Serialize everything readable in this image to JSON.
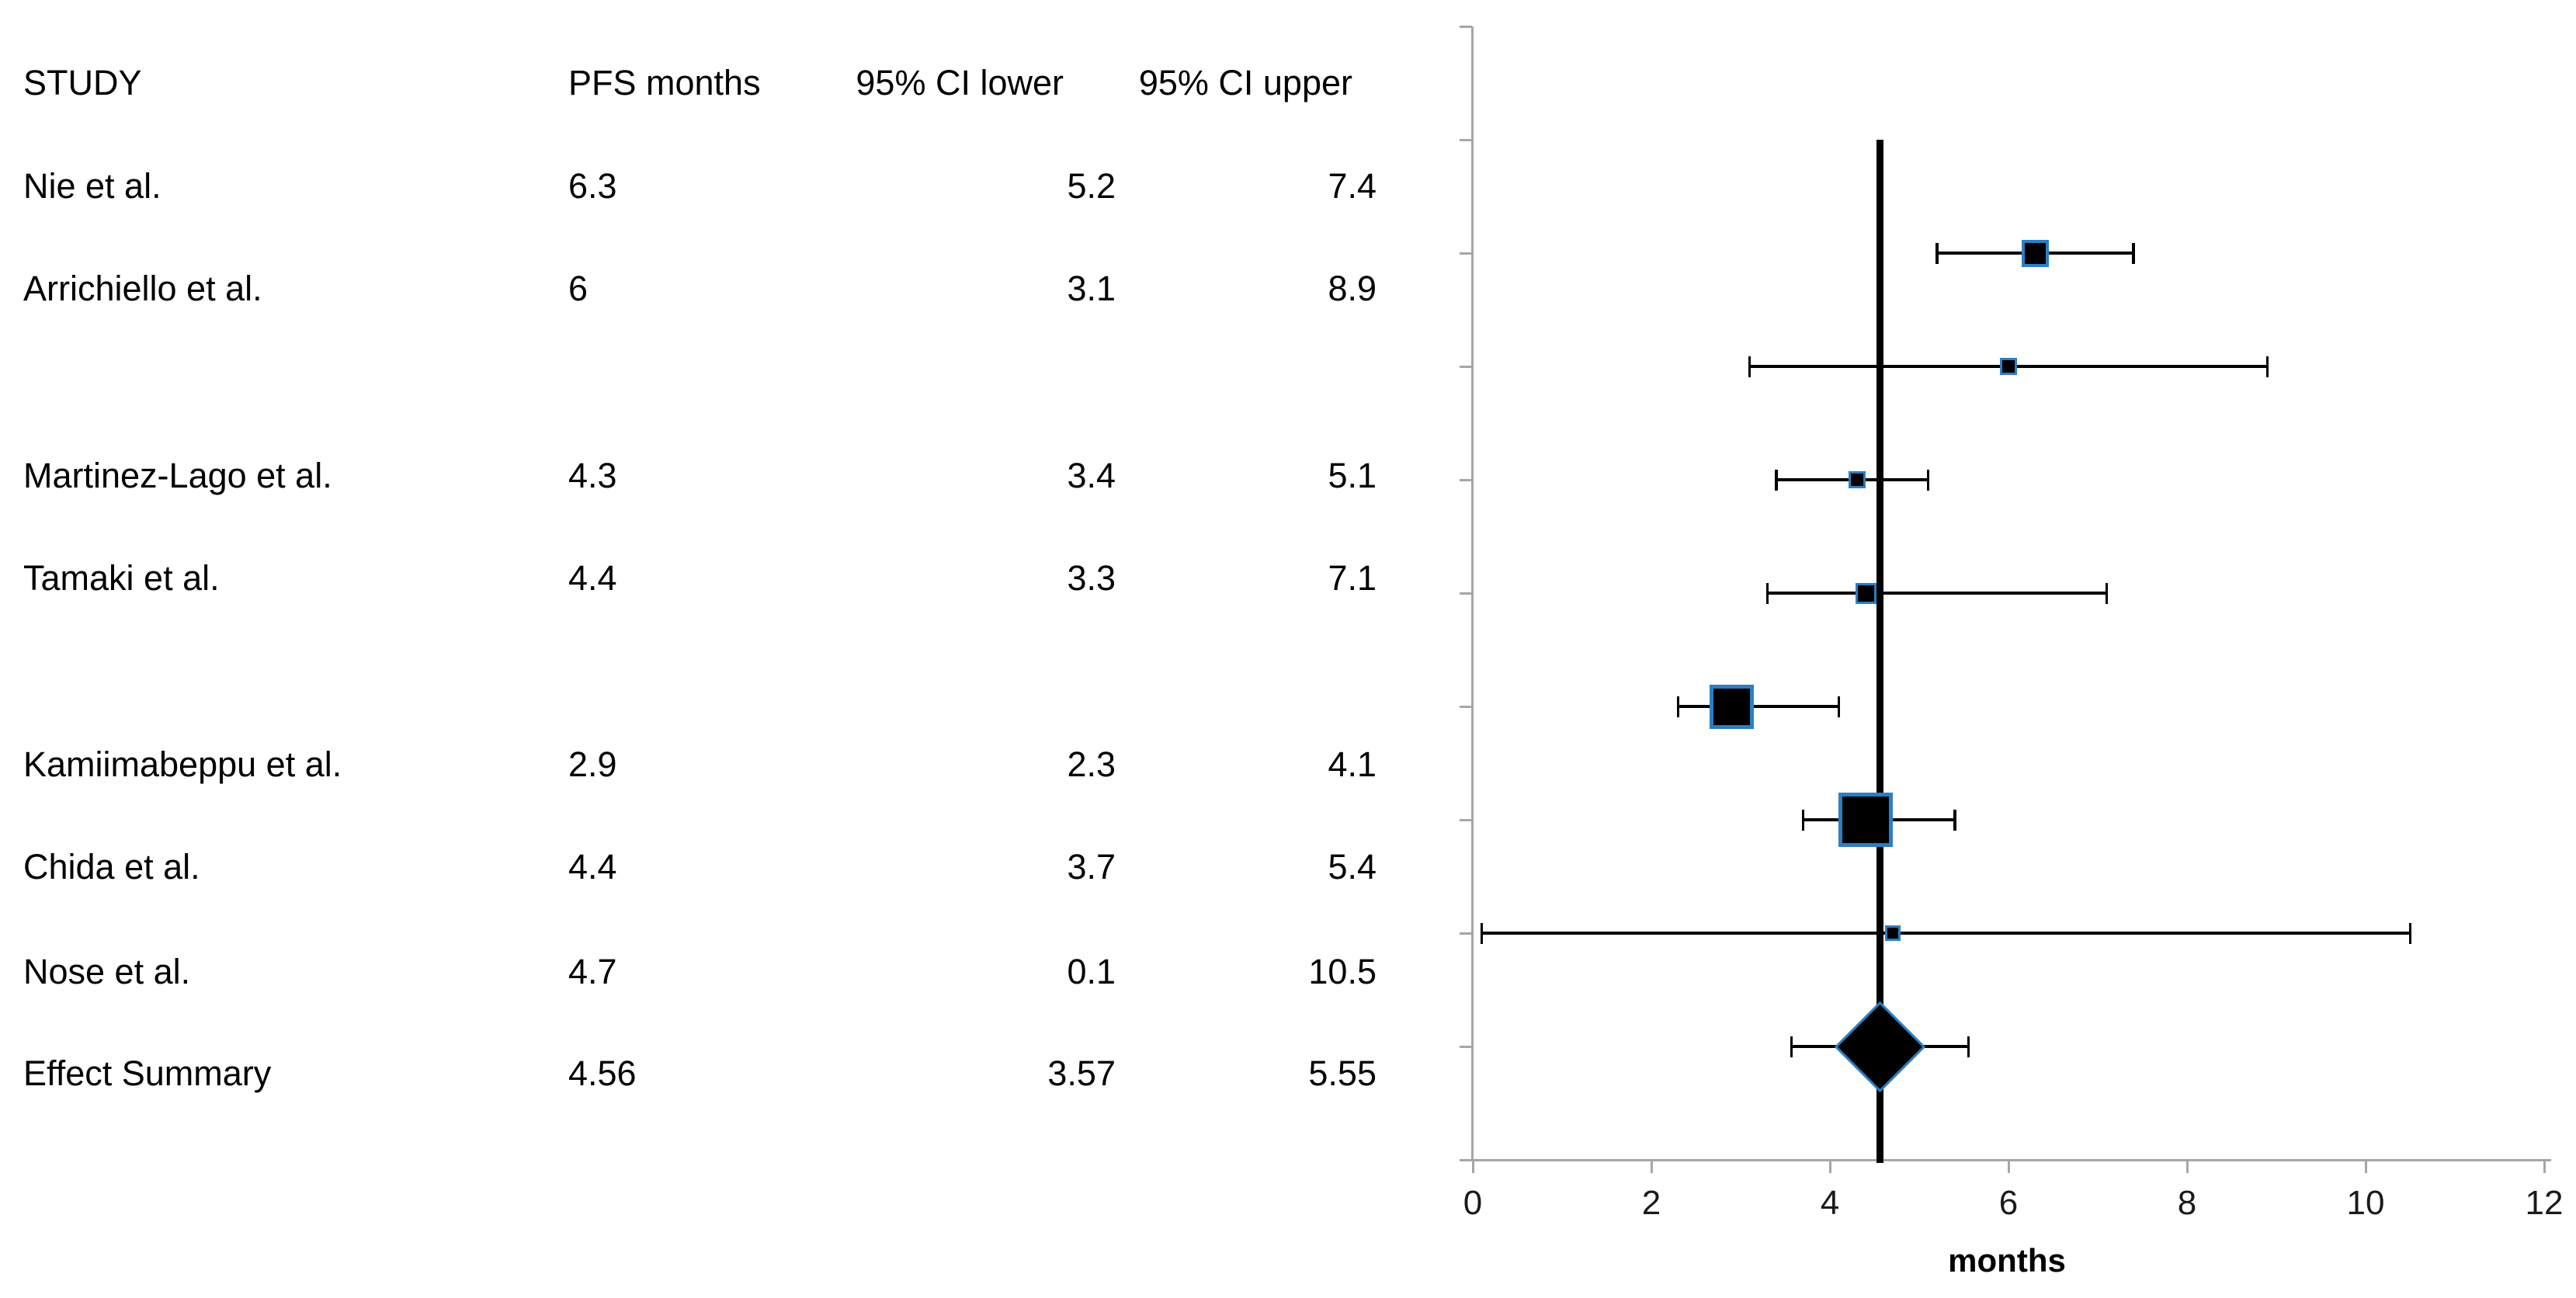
{
  "table": {
    "headers": [
      "STUDY",
      "PFS months",
      "95% CI lower",
      "95% CI upper"
    ],
    "rows": [
      {
        "study": "Nie et al.",
        "pfs": "6.3",
        "ci_lower": "5.2",
        "ci_upper": "7.4"
      },
      {
        "study": "Arrichiello et al.",
        "pfs": "6",
        "ci_lower": "3.1",
        "ci_upper": "8.9"
      },
      {
        "study": "Martinez-Lago et al.",
        "pfs": "4.3",
        "ci_lower": "3.4",
        "ci_upper": "5.1"
      },
      {
        "study": "Tamaki et al.",
        "pfs": "4.4",
        "ci_lower": "3.3",
        "ci_upper": "7.1"
      },
      {
        "study": "Kamiimabeppu et al.",
        "pfs": "2.9",
        "ci_lower": "2.3",
        "ci_upper": "4.1"
      },
      {
        "study": "Chida et al.",
        "pfs": "4.4",
        "ci_lower": "3.7",
        "ci_upper": "5.4"
      },
      {
        "study": "Nose et al.",
        "pfs": "4.7",
        "ci_lower": "0.1",
        "ci_upper": "10.5"
      },
      {
        "study": "Effect Summary",
        "pfs": "4.56",
        "ci_lower": "3.57",
        "ci_upper": "5.55"
      }
    ]
  },
  "chart_data": {
    "type": "scatter",
    "subtype": "forest-plot",
    "title": "",
    "xlabel": "months",
    "ylabel": "",
    "xlim": [
      0,
      12
    ],
    "x_ticks": [
      0,
      2,
      4,
      6,
      8,
      10,
      12
    ],
    "grid": false,
    "legend": "none",
    "summary_line_x": 4.56,
    "series": [
      {
        "name": "Nie et al.",
        "pfs": 6.3,
        "ci_lower": 5.2,
        "ci_upper": 7.4,
        "marker": "square",
        "marker_px": 35
      },
      {
        "name": "Arrichiello et al.",
        "pfs": 6,
        "ci_lower": 3.1,
        "ci_upper": 8.9,
        "marker": "square",
        "marker_px": 22
      },
      {
        "name": "Martinez-Lago et al.",
        "pfs": 4.3,
        "ci_lower": 3.4,
        "ci_upper": 5.1,
        "marker": "square",
        "marker_px": 22
      },
      {
        "name": "Tamaki et al.",
        "pfs": 4.4,
        "ci_lower": 3.3,
        "ci_upper": 7.1,
        "marker": "square",
        "marker_px": 27
      },
      {
        "name": "Kamiimabeppu et al.",
        "pfs": 2.9,
        "ci_lower": 2.3,
        "ci_upper": 4.1,
        "marker": "square",
        "marker_px": 57
      },
      {
        "name": "Chida et al.",
        "pfs": 4.4,
        "ci_lower": 3.7,
        "ci_upper": 5.4,
        "marker": "square",
        "marker_px": 70
      },
      {
        "name": "Nose et al.",
        "pfs": 4.7,
        "ci_lower": 0.1,
        "ci_upper": 10.5,
        "marker": "square",
        "marker_px": 20
      },
      {
        "name": "Effect Summary",
        "pfs": 4.56,
        "ci_lower": 3.57,
        "ci_upper": 5.55,
        "marker": "diamond",
        "marker_px": 117
      }
    ],
    "colors": {
      "marker_fill": "#000000",
      "marker_border": "#2b7fc2",
      "axis": "#a6a6a6",
      "error_bar": "#000000",
      "summary_line": "#000000",
      "text": "#000000"
    }
  }
}
